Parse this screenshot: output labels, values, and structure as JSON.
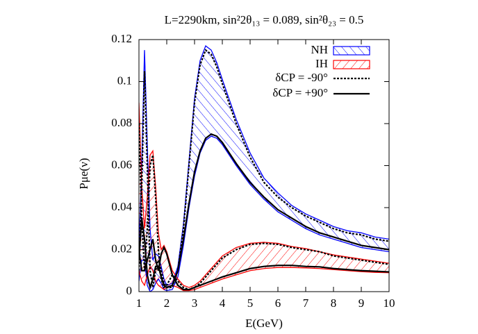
{
  "chart_data": {
    "type": "line",
    "title": "L=2290km, sin²2θ₁₃ = 0.089, sin²θ₂₃ = 0.5",
    "x_label": "E(GeV)",
    "y_label": "Pμe(ν)",
    "xlim": [
      1,
      10
    ],
    "ylim": [
      0,
      0.12
    ],
    "xticks": [
      1,
      2,
      3,
      4,
      5,
      6,
      7,
      8,
      9,
      10
    ],
    "yticks": [
      0,
      0.02,
      0.04,
      0.06,
      0.08,
      0.1,
      0.12
    ],
    "legend": "upper right",
    "x": [
      1.0,
      1.1,
      1.2,
      1.3,
      1.4,
      1.5,
      1.6,
      1.7,
      1.8,
      1.9,
      2.0,
      2.2,
      2.4,
      2.6,
      2.8,
      3.0,
      3.2,
      3.4,
      3.6,
      3.8,
      4.0,
      4.5,
      5,
      5.5,
      6,
      6.5,
      7,
      7.5,
      8,
      8.5,
      9,
      9.5,
      10
    ],
    "bands": [
      {
        "name": "NH",
        "color": "#0000ff",
        "hatch": "back",
        "upper": [
          0.02,
          0.06,
          0.115,
          0.07,
          0.03,
          0.015,
          0.018,
          0.017,
          0.012,
          0.006,
          0.003,
          0.004,
          0.012,
          0.032,
          0.062,
          0.092,
          0.11,
          0.117,
          0.115,
          0.109,
          0.101,
          0.082,
          0.066,
          0.054,
          0.047,
          0.041,
          0.037,
          0.034,
          0.031,
          0.029,
          0.028,
          0.026,
          0.025
        ],
        "lower": [
          0.005,
          0.015,
          0.015,
          0.003,
          0,
          0.001,
          0.004,
          0.006,
          0.004,
          0.001,
          0.0005,
          0.001,
          0.007,
          0.022,
          0.04,
          0.055,
          0.066,
          0.072,
          0.074,
          0.073,
          0.07,
          0.06,
          0.051,
          0.044,
          0.038,
          0.034,
          0.03,
          0.027,
          0.025,
          0.023,
          0.021,
          0.02,
          0.019
        ]
      },
      {
        "name": "IH",
        "color": "#ff0000",
        "hatch": "forward",
        "upper": [
          0.09,
          0.05,
          0.03,
          0.045,
          0.065,
          0.067,
          0.05,
          0.028,
          0.02,
          0.022,
          0.019,
          0.01,
          0.006,
          0.003,
          0.002,
          0.003,
          0.005,
          0.008,
          0.011,
          0.014,
          0.017,
          0.021,
          0.023,
          0.0235,
          0.023,
          0.0215,
          0.0205,
          0.019,
          0.0175,
          0.0165,
          0.0155,
          0.0145,
          0.0135
        ],
        "lower": [
          0.01,
          0.005,
          0.003,
          0.008,
          0.012,
          0.01,
          0.005,
          0.003,
          0.002,
          0.001,
          0.002,
          0.003,
          0.002,
          0.0005,
          0.0005,
          0.001,
          0.002,
          0.003,
          0.004,
          0.005,
          0.006,
          0.008,
          0.01,
          0.011,
          0.0115,
          0.0115,
          0.0113,
          0.011,
          0.0105,
          0.01,
          0.0095,
          0.0092,
          0.009
        ]
      }
    ],
    "lines": [
      {
        "name": "δCP = -90°",
        "color": "#000000",
        "dashed": true,
        "nh": [
          0.01,
          0.05,
          0.105,
          0.06,
          0.01,
          0.002,
          0.01,
          0.015,
          0.01,
          0.004,
          0.002,
          0.002,
          0.01,
          0.03,
          0.06,
          0.09,
          0.108,
          0.115,
          0.113,
          0.107,
          0.099,
          0.08,
          0.064,
          0.052,
          0.045,
          0.04,
          0.036,
          0.033,
          0.03,
          0.028,
          0.027,
          0.025,
          0.024
        ],
        "ih": [
          0.08,
          0.035,
          0.01,
          0.03,
          0.06,
          0.065,
          0.045,
          0.02,
          0.006,
          0.002,
          0.003,
          0.008,
          0.005,
          0.002,
          0.001,
          0.002,
          0.004,
          0.007,
          0.01,
          0.013,
          0.016,
          0.02,
          0.0225,
          0.023,
          0.0225,
          0.021,
          0.02,
          0.019,
          0.017,
          0.016,
          0.015,
          0.014,
          0.013
        ]
      },
      {
        "name": "δCP = +90°",
        "color": "#000000",
        "dashed": false,
        "nh": [
          0.015,
          0.035,
          0.025,
          0.008,
          0.002,
          0.006,
          0.012,
          0.012,
          0.007,
          0.003,
          0.002,
          0.003,
          0.01,
          0.025,
          0.042,
          0.057,
          0.067,
          0.073,
          0.075,
          0.074,
          0.071,
          0.061,
          0.052,
          0.045,
          0.039,
          0.035,
          0.031,
          0.028,
          0.026,
          0.024,
          0.022,
          0.021,
          0.02
        ],
        "ih": [
          0.02,
          0.01,
          0.01,
          0.015,
          0.02,
          0.025,
          0.015,
          0.01,
          0.018,
          0.021,
          0.018,
          0.008,
          0.003,
          0.001,
          0.001,
          0.002,
          0.003,
          0.004,
          0.005,
          0.006,
          0.007,
          0.009,
          0.011,
          0.012,
          0.0125,
          0.0125,
          0.012,
          0.0118,
          0.011,
          0.0105,
          0.01,
          0.0097,
          0.0094
        ]
      }
    ]
  }
}
